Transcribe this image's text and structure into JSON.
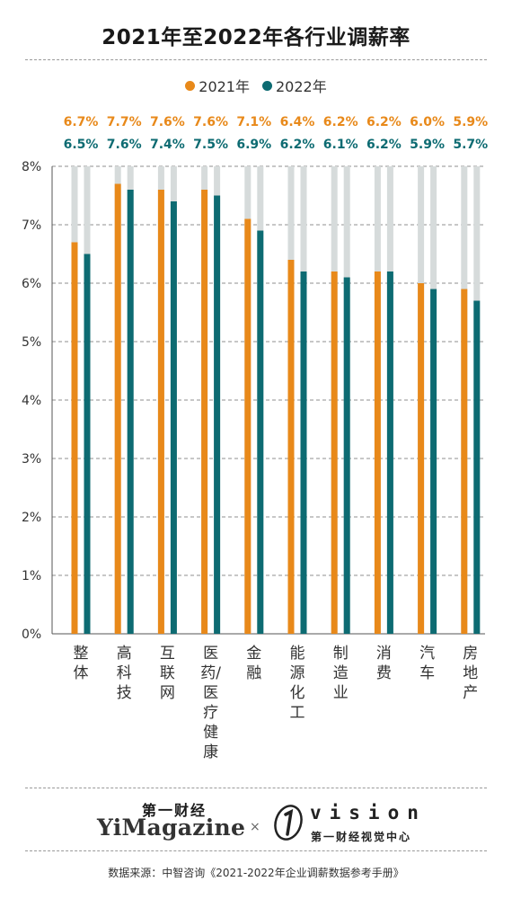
{
  "title": "2021年至2022年各行业调薪率",
  "legend": [
    {
      "label": "2021年",
      "color": "#E8891A"
    },
    {
      "label": "2022年",
      "color": "#0D6B72"
    }
  ],
  "chart_data": {
    "type": "bar",
    "title": "2021年至2022年各行业调薪率",
    "categories": [
      "整体",
      "高科技",
      "互联网",
      "医药/医疗健康",
      "金融",
      "能源化工",
      "制造业",
      "消费",
      "汽车",
      "房地产"
    ],
    "series": [
      {
        "name": "2021年",
        "color": "#E8891A",
        "values": [
          6.7,
          7.7,
          7.6,
          7.6,
          7.1,
          6.4,
          6.2,
          6.2,
          6.0,
          5.9
        ],
        "labels": [
          "6.7%",
          "7.7%",
          "7.6%",
          "7.6%",
          "7.1%",
          "6.4%",
          "6.2%",
          "6.2%",
          "6.0%",
          "5.9%"
        ]
      },
      {
        "name": "2022年",
        "color": "#0D6B72",
        "values": [
          6.5,
          7.6,
          7.4,
          7.5,
          6.9,
          6.2,
          6.1,
          6.2,
          5.9,
          5.7
        ],
        "labels": [
          "6.5%",
          "7.6%",
          "7.4%",
          "7.5%",
          "6.9%",
          "6.2%",
          "6.1%",
          "6.2%",
          "5.9%",
          "5.7%"
        ]
      }
    ],
    "ylim": [
      0,
      8
    ],
    "y_ticks": [
      "0%",
      "1%",
      "2%",
      "3%",
      "4%",
      "5%",
      "6%",
      "7%",
      "8%"
    ],
    "grid": true,
    "legend_position": "top-center",
    "track_color": "#D6DBDB"
  },
  "brand": {
    "yicai_cn": "第一财经",
    "yimagazine": "YiMagazine",
    "separator": "×",
    "vision": "vision",
    "vision_sub": "第一财经视觉中心"
  },
  "source": "数据来源：中智咨询《2021-2022年企业调薪数据参考手册》"
}
